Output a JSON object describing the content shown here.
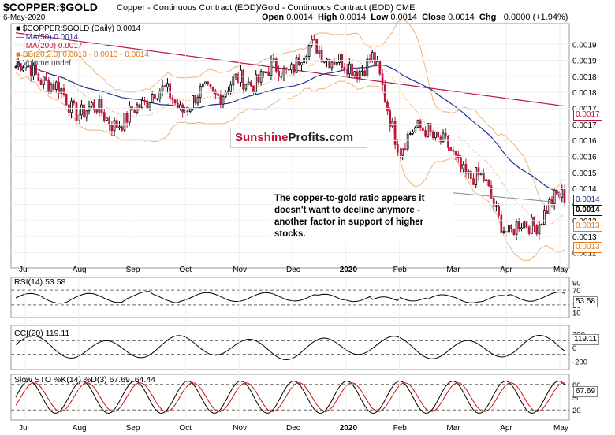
{
  "header": {
    "symbol": "$COPPER:$GOLD",
    "description": "Copper - Continuous Contract (EOD)/Gold - Continuous Contract (EOD) CME",
    "date": "6-May-2020",
    "ohlc": {
      "open_label": "Open",
      "open": "0.0014",
      "high_label": "High",
      "high": "0.0014",
      "low_label": "Low",
      "low": "0.0014",
      "close_label": "Close",
      "close": "0.0014",
      "chg_label": "Chg",
      "chg": "+0.0000 (+1.94%)"
    }
  },
  "legend": [
    {
      "text": "$COPPER:$GOLD (Daily) 0.0014",
      "color": "#000000"
    },
    {
      "text": "MA(50) 0.0014",
      "color": "#1f2f8f"
    },
    {
      "text": "MA(200) 0.0017",
      "color": "#c0143c"
    },
    {
      "text": "BB(20,2.0) 0.0013 - 0.0013 - 0.0014",
      "color": "#e07a20"
    },
    {
      "text": "Volume undef",
      "color": "#444444"
    }
  ],
  "watermark": {
    "part1": "Sunshine",
    "part2": "Profits.com"
  },
  "annotation": "The copper-to-gold ratio appears it doesn't want to decline anymore - another factor in support of higher stocks.",
  "price_tags": [
    {
      "value": "0.0017",
      "type": "ma200"
    },
    {
      "value": "0.0014",
      "type": "ma50"
    },
    {
      "value": "0.0014",
      "type": "last"
    },
    {
      "value": "0.0013",
      "type": "bb_mid"
    },
    {
      "value": "0.0013",
      "type": "bb_low"
    }
  ],
  "chart_data": {
    "type": "candlestick",
    "title": "$COPPER:$GOLD (Daily)",
    "x_axis_labels": [
      "Jul",
      "Aug",
      "Sep",
      "Oct",
      "Nov",
      "Dec",
      "2020",
      "Feb",
      "Mar",
      "Apr",
      "May"
    ],
    "y_axis_labels": [
      "0.0012",
      "0.0013",
      "0.0013",
      "0.0014",
      "0.0014",
      "0.0015",
      "0.0016",
      "0.0016",
      "0.0017",
      "0.0017",
      "0.0018",
      "0.0018",
      "0.0019",
      "0.0019"
    ],
    "ylim": [
      0.00118,
      0.00196
    ],
    "close_series": [
      [
        "Jul",
        0.00183
      ],
      [
        "Jul-mid",
        0.0018
      ],
      [
        "Aug",
        0.0017
      ],
      [
        "Aug-mid",
        0.00168
      ],
      [
        "Sep",
        0.00164
      ],
      [
        "Sep-mid",
        0.00176
      ],
      [
        "Oct",
        0.0017
      ],
      [
        "Oct-mid",
        0.00174
      ],
      [
        "Nov",
        0.00177
      ],
      [
        "Nov-mid",
        0.0018
      ],
      [
        "Dec",
        0.00183
      ],
      [
        "Dec-mid",
        0.0019
      ],
      [
        "2020",
        0.00182
      ],
      [
        "2020-mid",
        0.00185
      ],
      [
        "Feb",
        0.00157
      ],
      [
        "Feb-mid",
        0.00164
      ],
      [
        "Mar",
        0.00152
      ],
      [
        "Mar-mid",
        0.00145
      ],
      [
        "Apr",
        0.00128
      ],
      [
        "Apr-mid",
        0.00133
      ],
      [
        "May",
        0.00141
      ]
    ],
    "indicators": {
      "ma50": 0.0014,
      "ma200": 0.0017,
      "bb": {
        "params": "20,2.0",
        "lower": 0.0013,
        "middle": 0.0013,
        "upper": 0.0014
      }
    },
    "rsi": {
      "label": "RSI(14) 53.58",
      "value": 53.58,
      "levels": [
        70,
        30
      ],
      "ticks": [
        "90",
        "70",
        "30",
        "10"
      ],
      "tag": "53.58"
    },
    "cci": {
      "label": "CCI(20) 119.11",
      "value": 119.11,
      "levels": [
        100,
        -100
      ],
      "ticks": [
        "200",
        "0",
        "-200"
      ],
      "tag": "119.11"
    },
    "stoch": {
      "label": "Slow STO %K(14) %D(3) 67.69, 64.44",
      "k": 67.69,
      "d": 64.44,
      "ticks": [
        "80",
        "50",
        "20"
      ],
      "tag": "67.69"
    }
  }
}
